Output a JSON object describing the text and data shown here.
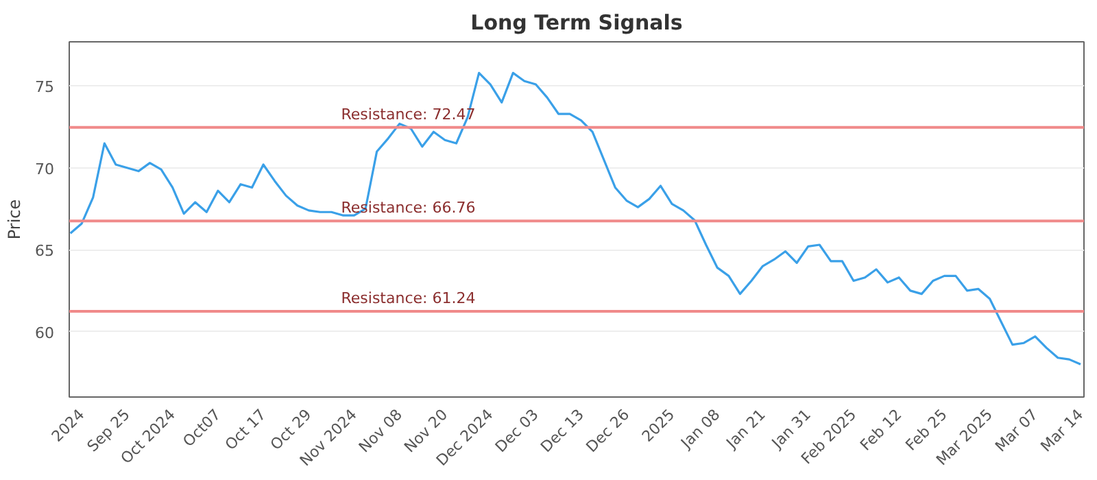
{
  "chart_data": {
    "type": "line",
    "title": "Long Term Signals",
    "ylabel": "Price",
    "categories": [
      null,
      "2024",
      null,
      null,
      null,
      "Sep 25",
      null,
      null,
      null,
      "Oct 2024",
      null,
      null,
      null,
      "Oct07",
      null,
      null,
      null,
      "Oct 17",
      null,
      null,
      null,
      "Oct 29",
      null,
      null,
      null,
      "Nov 2024",
      null,
      null,
      null,
      "Nov 08",
      null,
      null,
      null,
      "Nov 20",
      null,
      null,
      null,
      "Dec 2024",
      null,
      null,
      null,
      "Dec 03",
      null,
      null,
      null,
      "Dec 13",
      null,
      null,
      null,
      "Dec 26",
      null,
      null,
      null,
      "2025",
      null,
      null,
      null,
      "Jan 08",
      null,
      null,
      null,
      "Jan 21",
      null,
      null,
      null,
      "Jan 31",
      null,
      null,
      null,
      "Feb 2025",
      null,
      null,
      null,
      "Feb 12",
      null,
      null,
      null,
      "Feb 25",
      null,
      null,
      null,
      "Mar 2025",
      null,
      null,
      null,
      "Mar 07",
      null,
      null,
      null,
      "Mar 14"
    ],
    "series": [
      {
        "color": "#3aa0e8",
        "values": [
          66.0,
          66.6,
          68.2,
          71.5,
          70.2,
          70.0,
          69.8,
          70.3,
          69.9,
          68.8,
          67.2,
          67.9,
          67.3,
          68.6,
          67.9,
          69.0,
          68.8,
          70.2,
          69.2,
          68.3,
          67.7,
          67.4,
          67.3,
          67.3,
          67.1,
          67.1,
          67.5,
          71.0,
          71.8,
          72.7,
          72.4,
          71.3,
          72.2,
          71.7,
          71.5,
          73.1,
          75.8,
          75.1,
          74.0,
          75.8,
          75.3,
          75.1,
          74.3,
          73.3,
          73.3,
          72.9,
          72.2,
          70.5,
          68.8,
          68.0,
          67.6,
          68.1,
          68.9,
          67.8,
          67.4,
          66.8,
          65.3,
          63.9,
          63.4,
          62.3,
          63.1,
          64.0,
          64.4,
          64.9,
          64.2,
          65.2,
          65.3,
          64.3,
          64.3,
          63.1,
          63.3,
          63.8,
          63.0,
          63.3,
          62.5,
          62.3,
          63.1,
          63.4,
          63.4,
          62.5,
          62.6,
          62.0,
          60.6,
          59.2,
          59.3,
          59.7,
          59.0,
          58.4,
          58.3,
          58.0
        ]
      }
    ],
    "ylim": [
      56,
      77.7
    ],
    "yticks": [
      60,
      65,
      70,
      75
    ],
    "grid": "y",
    "marker": "none",
    "line_style": "solid",
    "ref_lines": [
      {
        "axis": "y",
        "value": 72.47,
        "label": "Resistance: 72.47",
        "color": "#f08a8a"
      },
      {
        "axis": "y",
        "value": 66.76,
        "label": "Resistance: 66.76",
        "color": "#f08a8a"
      },
      {
        "axis": "y",
        "value": 61.24,
        "label": "Resistance: 61.24",
        "color": "#f08a8a"
      }
    ]
  }
}
